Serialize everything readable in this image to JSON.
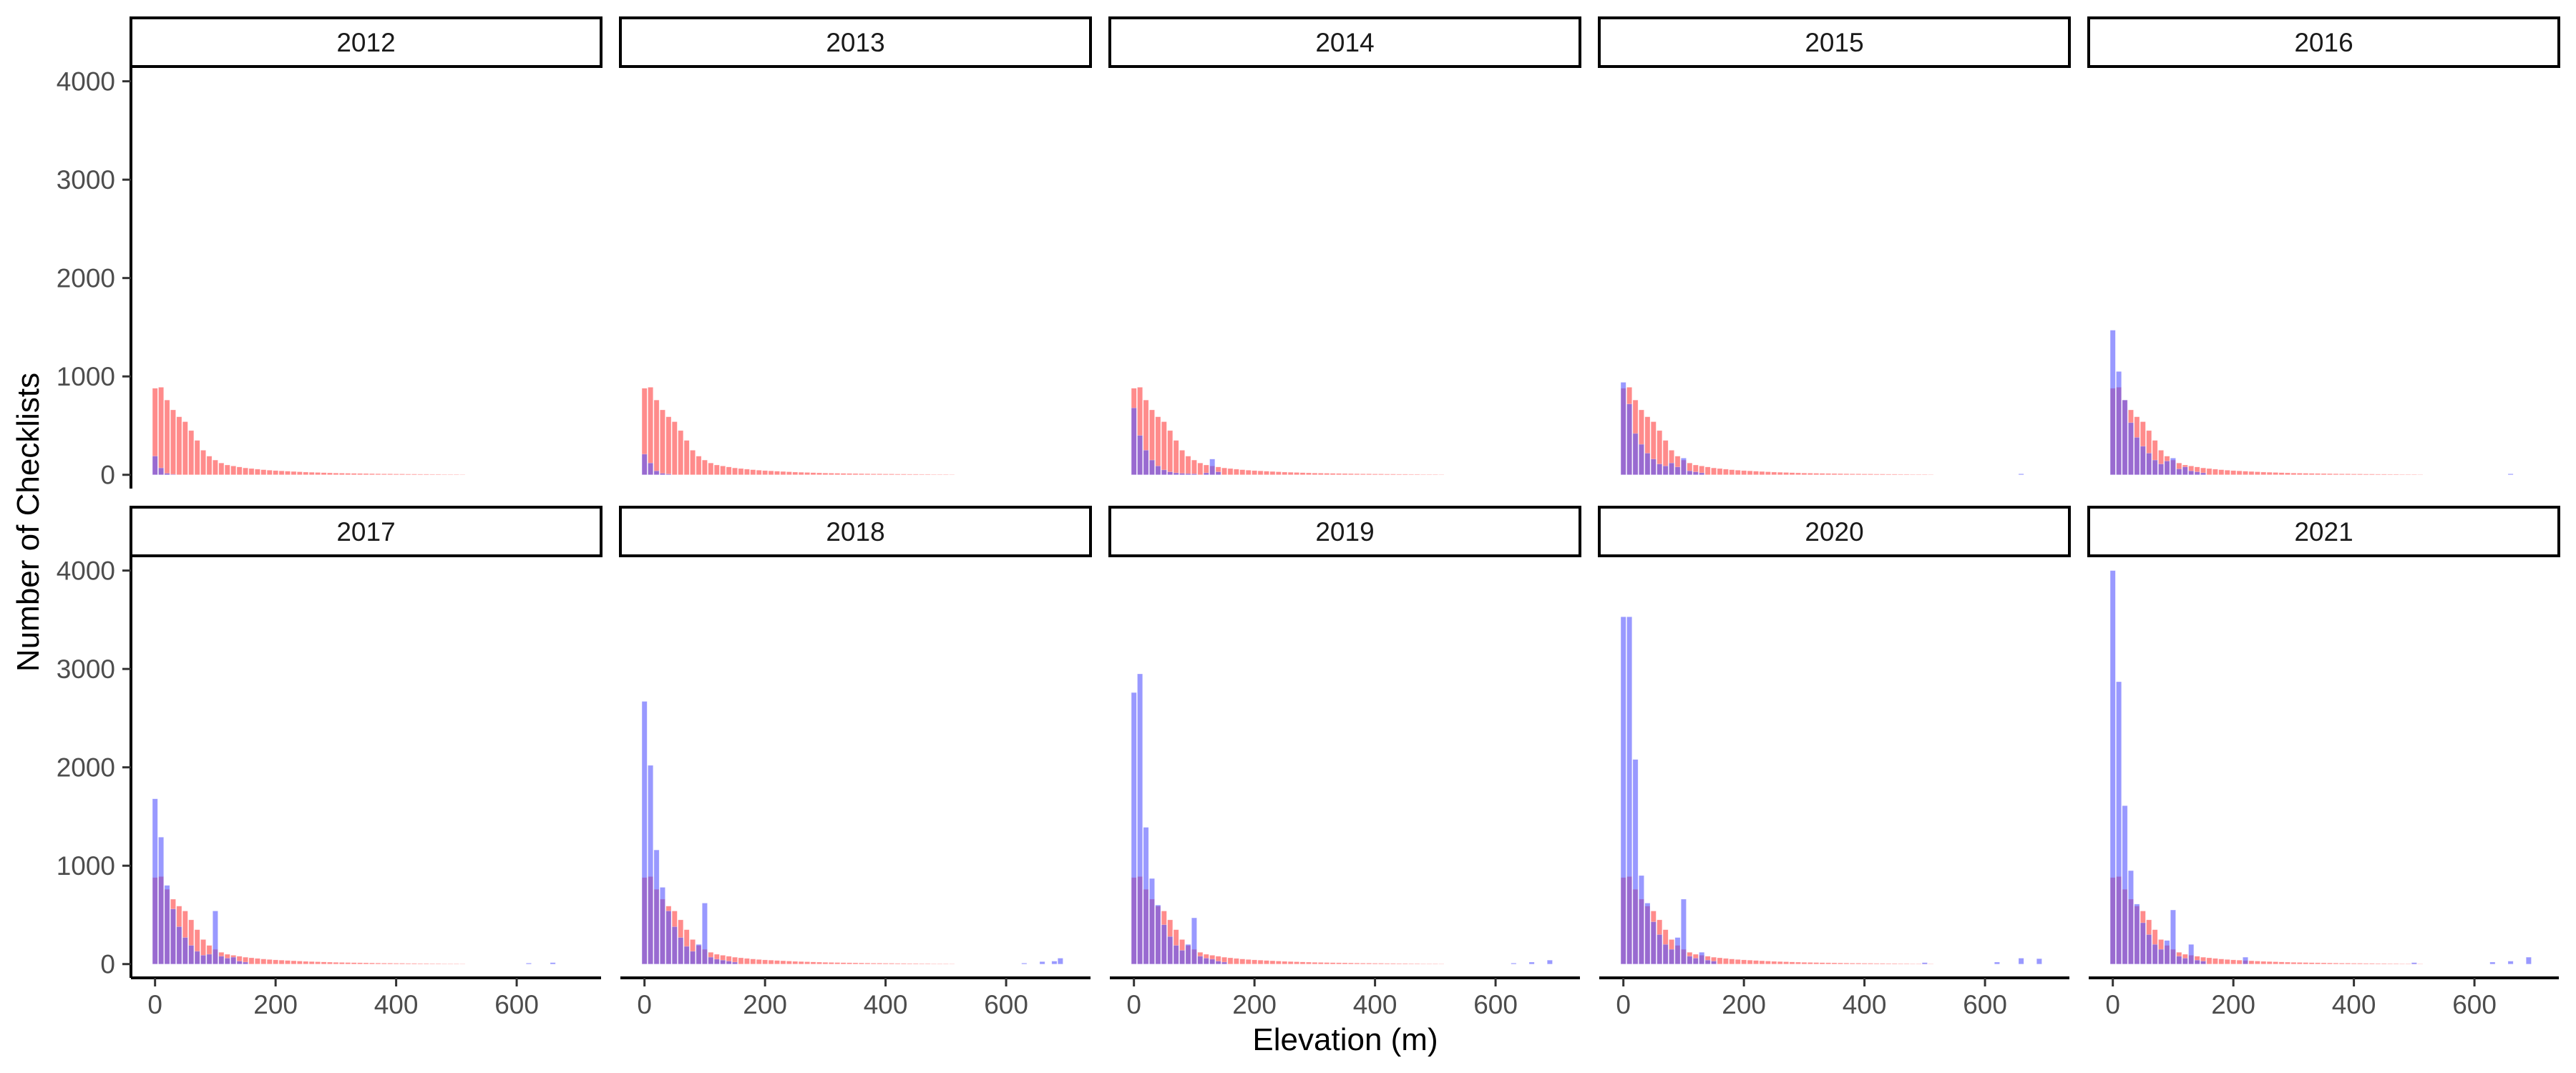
{
  "chart_data": {
    "type": "bar",
    "xlabel": "Elevation (m)",
    "ylabel": "Number of Checklists",
    "xlim": [
      -40,
      740
    ],
    "ylim": [
      -140,
      4150
    ],
    "x_ticks": [
      0,
      200,
      400,
      600
    ],
    "y_ticks": [
      0,
      1000,
      2000,
      3000,
      4000
    ],
    "bin_width": 10,
    "grid": false,
    "legend": "none",
    "series_colors": {
      "reference": "#ff5a5a",
      "observed": "#5555ff"
    },
    "reference_series": {
      "start": 0,
      "values": [
        880,
        890,
        760,
        660,
        590,
        540,
        450,
        350,
        250,
        190,
        150,
        120,
        100,
        90,
        80,
        70,
        64,
        58,
        52,
        47,
        43,
        40,
        37,
        34,
        31,
        28,
        26,
        24,
        22,
        20,
        18,
        17,
        16,
        15,
        14,
        13,
        12,
        11,
        10,
        10,
        9,
        9,
        8,
        8,
        7,
        7,
        6,
        6,
        5,
        5,
        5,
        4
      ]
    },
    "panels": [
      {
        "year": "2012",
        "observed": [
          [
            0,
            190
          ],
          [
            10,
            70
          ],
          [
            20,
            15
          ],
          [
            30,
            5
          ]
        ]
      },
      {
        "year": "2013",
        "observed": [
          [
            0,
            210
          ],
          [
            10,
            120
          ],
          [
            20,
            40
          ],
          [
            30,
            15
          ],
          [
            40,
            8
          ]
        ]
      },
      {
        "year": "2014",
        "observed": [
          [
            0,
            680
          ],
          [
            10,
            400
          ],
          [
            20,
            250
          ],
          [
            30,
            150
          ],
          [
            40,
            90
          ],
          [
            50,
            50
          ],
          [
            60,
            30
          ],
          [
            70,
            20
          ],
          [
            80,
            15
          ],
          [
            90,
            12
          ],
          [
            100,
            10
          ],
          [
            120,
            20
          ],
          [
            130,
            160
          ],
          [
            140,
            30
          ]
        ]
      },
      {
        "year": "2015",
        "observed": [
          [
            0,
            940
          ],
          [
            10,
            720
          ],
          [
            20,
            420
          ],
          [
            30,
            310
          ],
          [
            40,
            220
          ],
          [
            50,
            160
          ],
          [
            60,
            110
          ],
          [
            70,
            90
          ],
          [
            80,
            120
          ],
          [
            90,
            80
          ],
          [
            100,
            170
          ],
          [
            110,
            40
          ],
          [
            120,
            30
          ],
          [
            130,
            20
          ],
          [
            660,
            10
          ]
        ]
      },
      {
        "year": "2016",
        "observed": [
          [
            0,
            1470
          ],
          [
            10,
            1050
          ],
          [
            20,
            760
          ],
          [
            30,
            530
          ],
          [
            40,
            380
          ],
          [
            50,
            290
          ],
          [
            60,
            220
          ],
          [
            70,
            150
          ],
          [
            80,
            110
          ],
          [
            90,
            140
          ],
          [
            100,
            170
          ],
          [
            110,
            60
          ],
          [
            120,
            80
          ],
          [
            130,
            40
          ],
          [
            140,
            30
          ],
          [
            150,
            20
          ],
          [
            660,
            10
          ]
        ]
      },
      {
        "year": "2017",
        "observed": [
          [
            0,
            1680
          ],
          [
            10,
            1290
          ],
          [
            20,
            800
          ],
          [
            30,
            560
          ],
          [
            40,
            380
          ],
          [
            50,
            270
          ],
          [
            60,
            190
          ],
          [
            70,
            130
          ],
          [
            80,
            90
          ],
          [
            90,
            100
          ],
          [
            100,
            540
          ],
          [
            110,
            80
          ],
          [
            120,
            60
          ],
          [
            130,
            70
          ],
          [
            140,
            30
          ],
          [
            150,
            20
          ],
          [
            620,
            10
          ],
          [
            660,
            15
          ]
        ]
      },
      {
        "year": "2018",
        "observed": [
          [
            0,
            2670
          ],
          [
            10,
            2020
          ],
          [
            20,
            1160
          ],
          [
            30,
            780
          ],
          [
            40,
            540
          ],
          [
            50,
            380
          ],
          [
            60,
            270
          ],
          [
            70,
            180
          ],
          [
            80,
            130
          ],
          [
            90,
            200
          ],
          [
            100,
            620
          ],
          [
            110,
            70
          ],
          [
            120,
            50
          ],
          [
            130,
            40
          ],
          [
            140,
            30
          ],
          [
            150,
            20
          ],
          [
            630,
            10
          ],
          [
            660,
            25
          ],
          [
            680,
            30
          ],
          [
            690,
            60
          ]
        ]
      },
      {
        "year": "2019",
        "observed": [
          [
            0,
            2760
          ],
          [
            10,
            2950
          ],
          [
            20,
            1390
          ],
          [
            30,
            870
          ],
          [
            40,
            600
          ],
          [
            50,
            400
          ],
          [
            60,
            280
          ],
          [
            70,
            190
          ],
          [
            80,
            140
          ],
          [
            90,
            200
          ],
          [
            100,
            470
          ],
          [
            110,
            80
          ],
          [
            120,
            60
          ],
          [
            130,
            50
          ],
          [
            140,
            30
          ],
          [
            150,
            20
          ],
          [
            630,
            10
          ],
          [
            660,
            20
          ],
          [
            690,
            40
          ]
        ]
      },
      {
        "year": "2020",
        "observed": [
          [
            0,
            3530
          ],
          [
            10,
            3530
          ],
          [
            20,
            2080
          ],
          [
            30,
            900
          ],
          [
            40,
            620
          ],
          [
            50,
            430
          ],
          [
            60,
            300
          ],
          [
            70,
            200
          ],
          [
            80,
            150
          ],
          [
            90,
            270
          ],
          [
            100,
            660
          ],
          [
            110,
            80
          ],
          [
            120,
            60
          ],
          [
            130,
            120
          ],
          [
            140,
            40
          ],
          [
            150,
            30
          ],
          [
            500,
            15
          ],
          [
            620,
            20
          ],
          [
            660,
            60
          ],
          [
            690,
            55
          ]
        ]
      },
      {
        "year": "2021",
        "observed": [
          [
            0,
            4000
          ],
          [
            10,
            2870
          ],
          [
            20,
            1610
          ],
          [
            30,
            950
          ],
          [
            40,
            610
          ],
          [
            50,
            420
          ],
          [
            60,
            300
          ],
          [
            70,
            200
          ],
          [
            80,
            150
          ],
          [
            90,
            240
          ],
          [
            100,
            550
          ],
          [
            110,
            80
          ],
          [
            120,
            60
          ],
          [
            130,
            200
          ],
          [
            140,
            40
          ],
          [
            150,
            30
          ],
          [
            220,
            70
          ],
          [
            500,
            15
          ],
          [
            630,
            20
          ],
          [
            660,
            30
          ],
          [
            690,
            70
          ]
        ]
      }
    ]
  }
}
